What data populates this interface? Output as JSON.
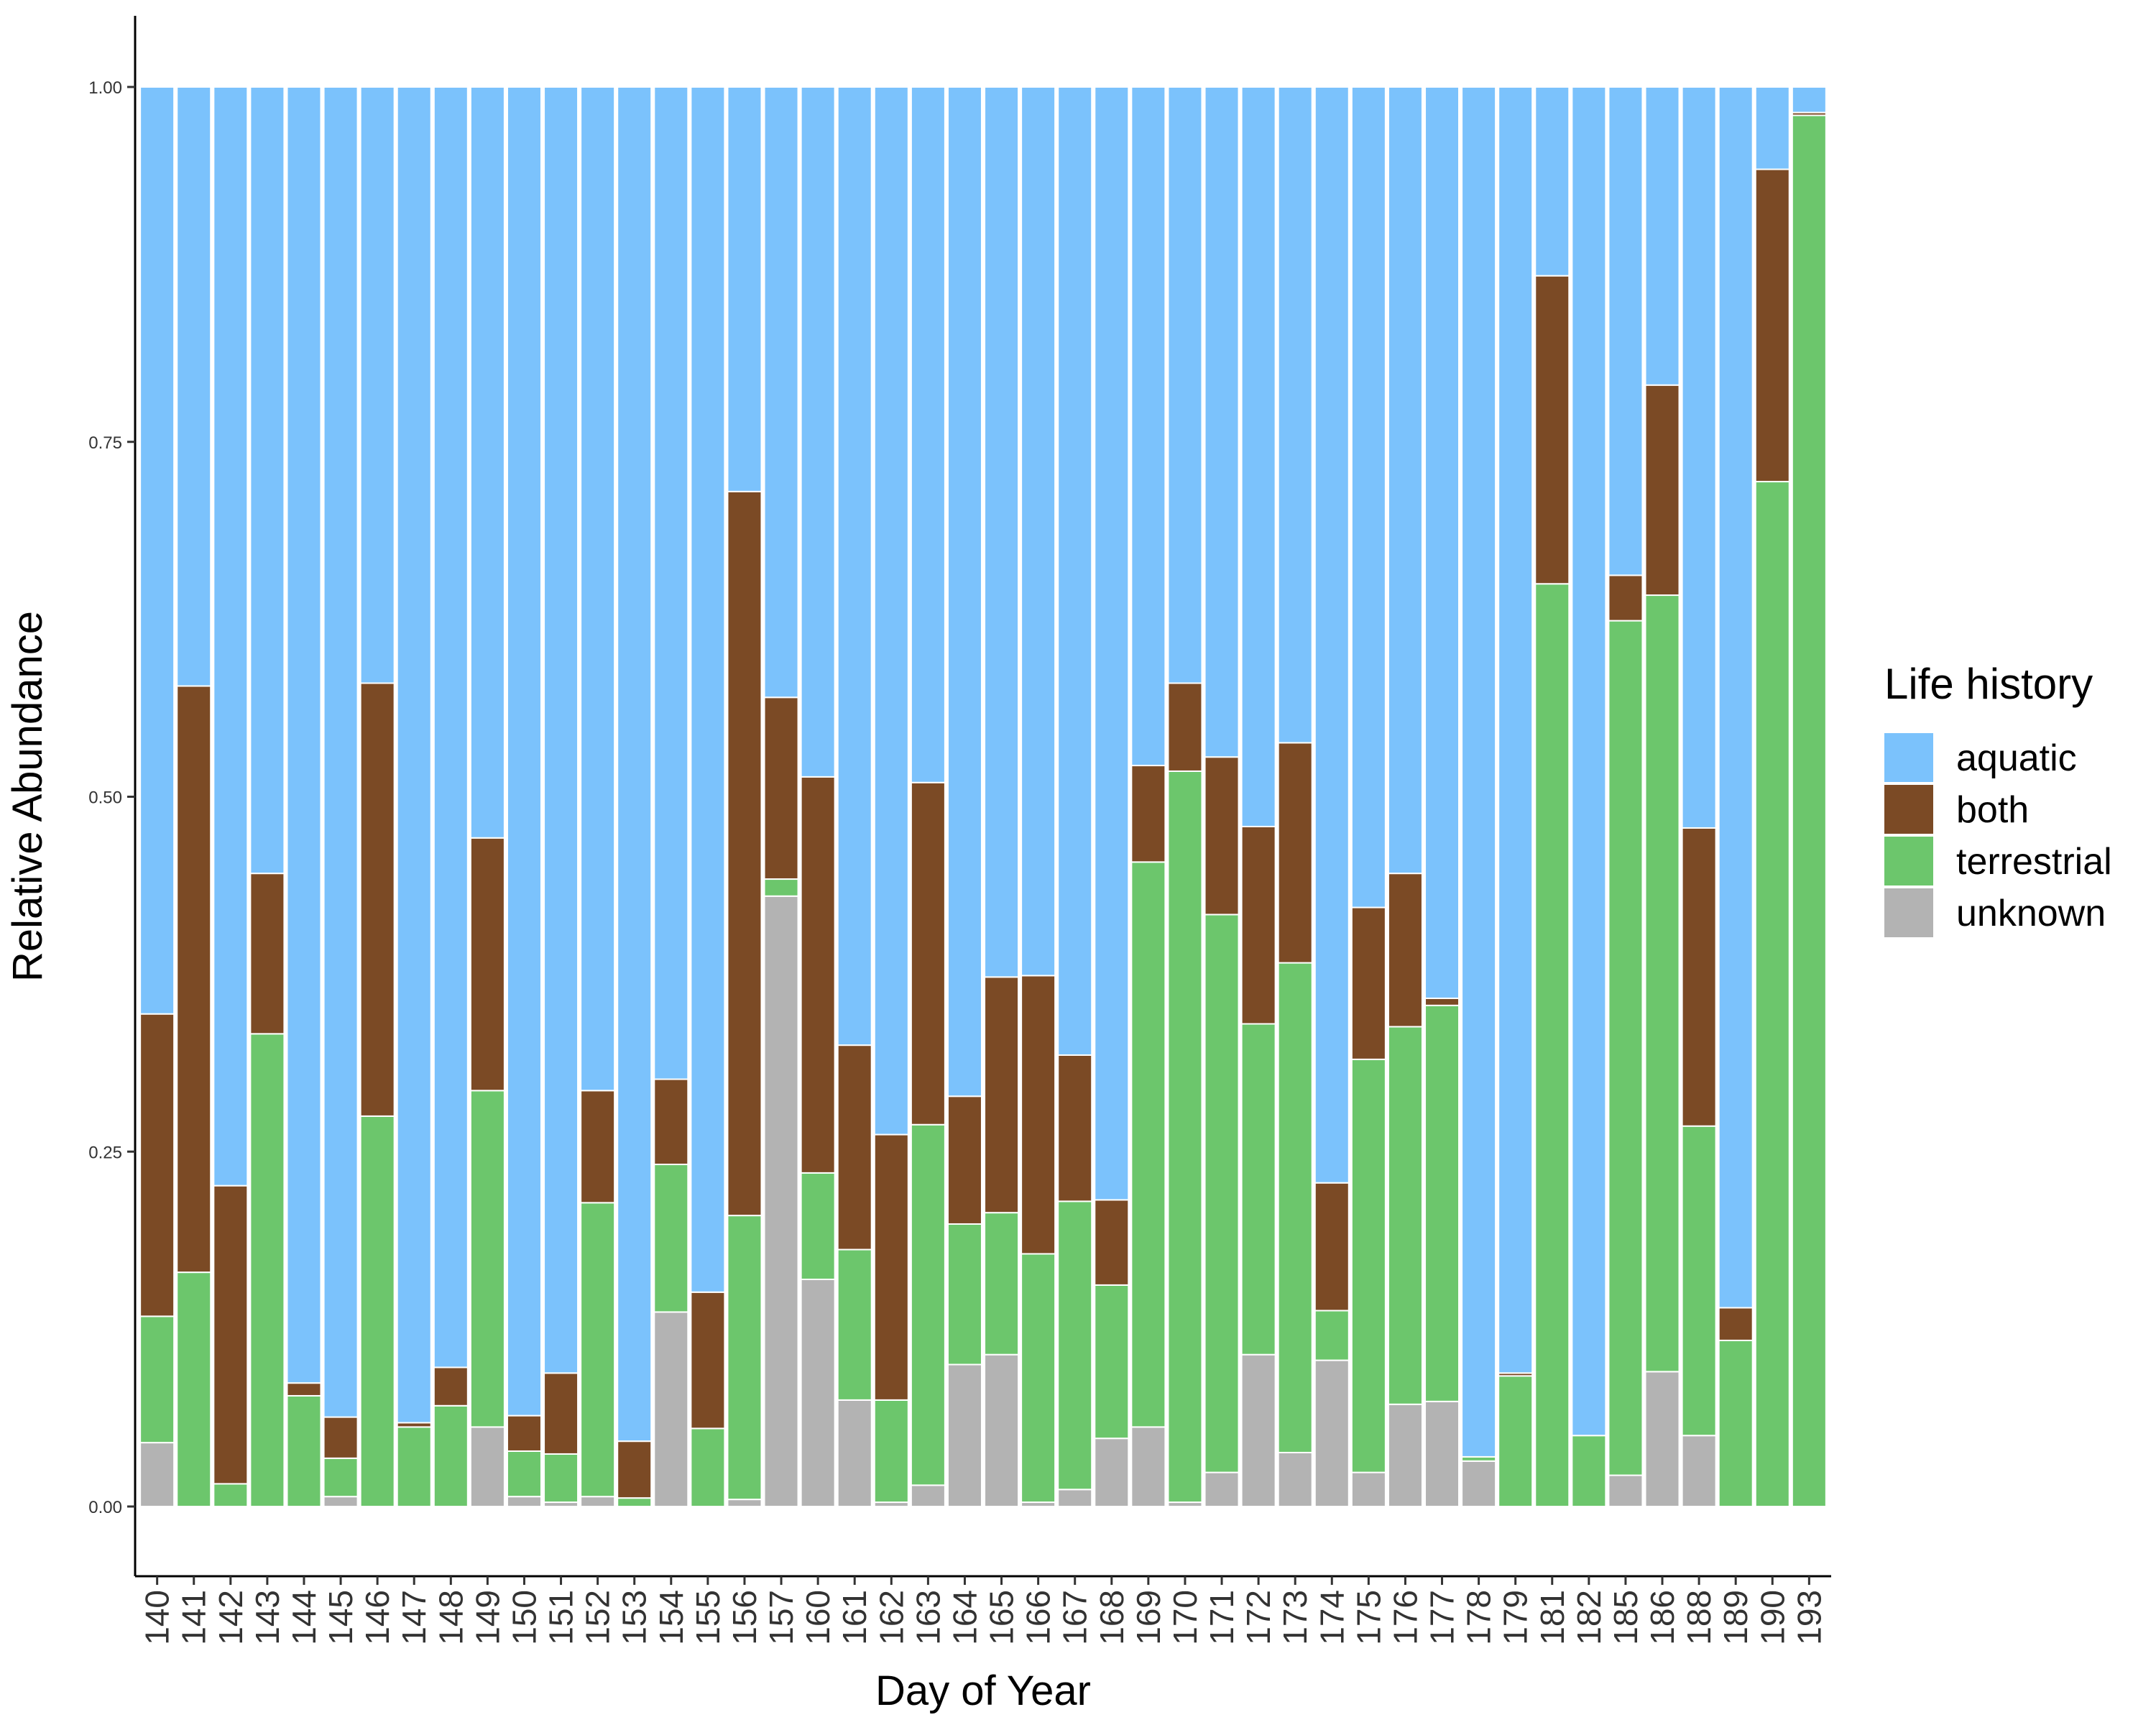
{
  "chart_data": {
    "type": "bar",
    "stacked": true,
    "xlabel": "Day of Year",
    "ylabel": "Relative Abundance",
    "ylim": [
      -0.05,
      1.05
    ],
    "yticks": [
      0.0,
      0.25,
      0.5,
      0.75,
      1.0
    ],
    "ytick_labels": [
      "0.00",
      "0.25",
      "0.50",
      "0.75",
      "1.00"
    ],
    "grid": false,
    "legend": {
      "title": "Life history",
      "placement": "right",
      "entries": [
        "aquatic",
        "both",
        "terrestrial",
        "unknown"
      ]
    },
    "categories": [
      "140",
      "141",
      "142",
      "143",
      "144",
      "145",
      "146",
      "147",
      "148",
      "149",
      "150",
      "151",
      "152",
      "153",
      "154",
      "155",
      "156",
      "157",
      "160",
      "161",
      "162",
      "163",
      "164",
      "165",
      "166",
      "167",
      "168",
      "169",
      "170",
      "171",
      "172",
      "173",
      "174",
      "175",
      "176",
      "177",
      "178",
      "179",
      "181",
      "182",
      "185",
      "186",
      "188",
      "189",
      "190",
      "193"
    ],
    "series": [
      {
        "name": "unknown",
        "color": "#b3b3b3",
        "values": [
          0.045,
          0,
          0,
          0,
          0,
          0.007,
          0,
          0,
          0,
          0.056,
          0.007,
          0.003,
          0.007,
          0,
          0.137,
          0,
          0.005,
          0.43,
          0.16,
          0.075,
          0.003,
          0.015,
          0.1,
          0.107,
          0.003,
          0.012,
          0.048,
          0.056,
          0.003,
          0.024,
          0.107,
          0.038,
          0.103,
          0.024,
          0.072,
          0.074,
          0.032,
          0,
          0,
          0,
          0.022,
          0.095,
          0.05,
          0,
          0,
          0
        ]
      },
      {
        "name": "terrestrial",
        "color": "#6cc66c",
        "values": [
          0.089,
          0.165,
          0.016,
          0.333,
          0.078,
          0.027,
          0.275,
          0.056,
          0.071,
          0.237,
          0.032,
          0.034,
          0.207,
          0.006,
          0.104,
          0.055,
          0.2,
          0.012,
          0.075,
          0.106,
          0.072,
          0.254,
          0.099,
          0.1,
          0.175,
          0.203,
          0.108,
          0.398,
          0.515,
          0.393,
          0.233,
          0.345,
          0.035,
          0.291,
          0.266,
          0.279,
          0.003,
          0.092,
          0.65,
          0.05,
          0.602,
          0.547,
          0.218,
          0.117,
          0.722,
          0.98
        ]
      },
      {
        "name": "both",
        "color": "#7b4a25",
        "values": [
          0.213,
          0.413,
          0.21,
          0.113,
          0.009,
          0.029,
          0.305,
          0.003,
          0.027,
          0.178,
          0.025,
          0.057,
          0.079,
          0.04,
          0.06,
          0.096,
          0.51,
          0.128,
          0.279,
          0.144,
          0.187,
          0.241,
          0.09,
          0.166,
          0.196,
          0.103,
          0.06,
          0.068,
          0.062,
          0.111,
          0.139,
          0.155,
          0.09,
          0.107,
          0.108,
          0.005,
          0,
          0.002,
          0.217,
          0,
          0.032,
          0.148,
          0.21,
          0.023,
          0.22,
          0.002
        ]
      },
      {
        "name": "aquatic",
        "color": "#7bc2fc",
        "values": [
          0.653,
          0.422,
          0.774,
          0.554,
          0.913,
          0.937,
          0.42,
          0.941,
          0.902,
          0.529,
          0.936,
          0.906,
          0.707,
          0.954,
          0.699,
          0.849,
          0.285,
          0.43,
          0.486,
          0.675,
          0.738,
          0.49,
          0.711,
          0.627,
          0.626,
          0.682,
          0.784,
          0.478,
          0.42,
          0.472,
          0.521,
          0.462,
          0.772,
          0.578,
          0.554,
          0.642,
          0.965,
          0.906,
          0.133,
          0.95,
          0.344,
          0.21,
          0.522,
          0.86,
          0.058,
          0.018
        ]
      }
    ]
  }
}
